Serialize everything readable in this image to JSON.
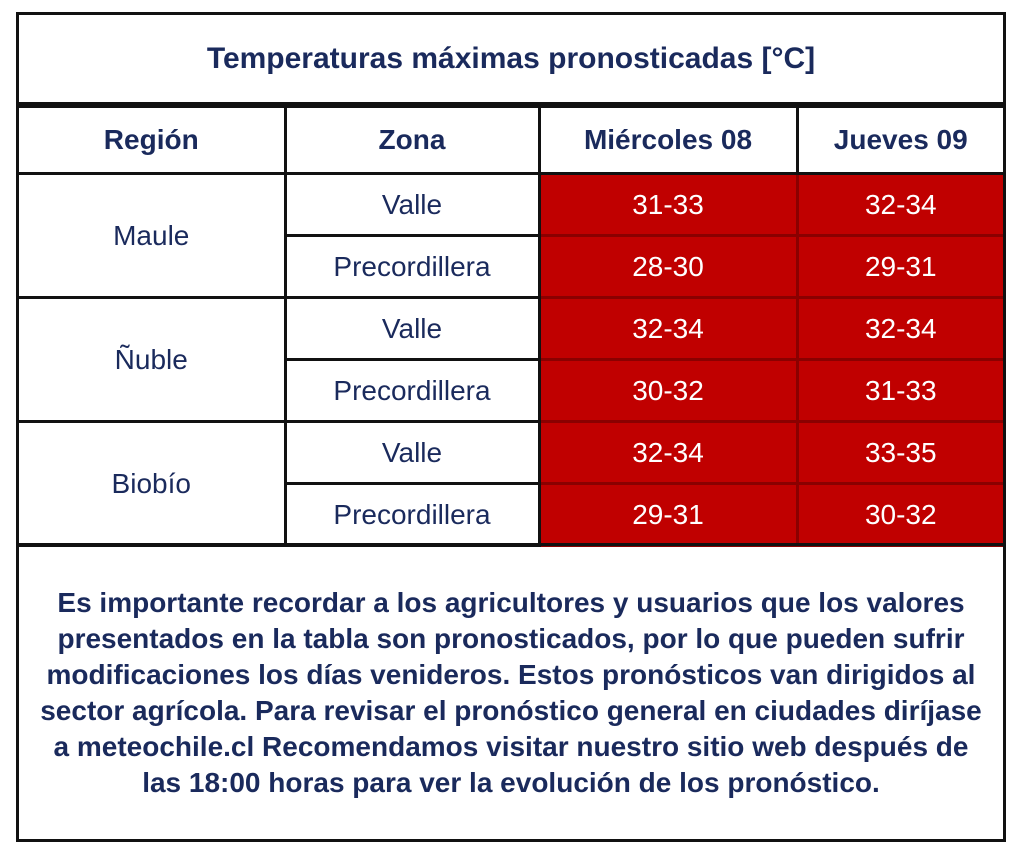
{
  "title": "Temperaturas máximas pronosticadas [°C]",
  "headers": [
    "Región",
    "Zona",
    "Miércoles 08",
    "Jueves 09"
  ],
  "rows": [
    {
      "region": "Maule",
      "zona": "Valle",
      "d1": "31-33",
      "d2": "32-34"
    },
    {
      "zona": "Precordillera",
      "d1": "28-30",
      "d2": "29-31"
    },
    {
      "region": "Ñuble",
      "zona": "Valle",
      "d1": "32-34",
      "d2": "32-34"
    },
    {
      "zona": "Precordillera",
      "d1": "30-32",
      "d2": "31-33"
    },
    {
      "region": "Biobío",
      "zona": "Valle",
      "d1": "32-34",
      "d2": "33-35"
    },
    {
      "zona": "Precordillera",
      "d1": "29-31",
      "d2": "30-32"
    }
  ],
  "note": "Es importante recordar a los agricultores y usuarios que los valores presentados en la tabla son pronosticados, por lo que pueden sufrir modificaciones los días venideros. Estos pronósticos van dirigidos al sector agrícola. Para revisar el pronóstico general en ciudades diríjase a meteochile.cl Recomendamos visitar nuestro sitio web después de las 18:00 horas para ver la evolución de los pronóstico.",
  "colors": {
    "cell_red": "#c00000",
    "text_navy": "#1a2a5c"
  }
}
